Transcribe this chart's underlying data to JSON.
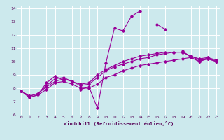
{
  "xlabel": "Windchill (Refroidissement éolien,°C)",
  "ylabel": "",
  "bg_color": "#cce9ed",
  "line_color": "#990099",
  "xlim": [
    -0.5,
    23.5
  ],
  "ylim": [
    6,
    14.2
  ],
  "xticks": [
    0,
    1,
    2,
    3,
    4,
    5,
    6,
    7,
    8,
    9,
    10,
    11,
    12,
    13,
    14,
    15,
    16,
    17,
    18,
    19,
    20,
    21,
    22,
    23
  ],
  "yticks": [
    6,
    7,
    8,
    9,
    10,
    11,
    12,
    13,
    14
  ],
  "series": [
    [
      7.8,
      7.3,
      7.5,
      8.4,
      8.9,
      8.6,
      null,
      7.9,
      8.1,
      6.5,
      9.9,
      12.5,
      12.3,
      13.4,
      13.8,
      null,
      12.8,
      12.4,
      null,
      10.8,
      10.3,
      10.0,
      10.3,
      10.0
    ],
    [
      7.8,
      7.3,
      7.5,
      7.9,
      8.4,
      8.5,
      8.3,
      8.0,
      8.0,
      8.3,
      8.8,
      9.0,
      9.3,
      9.5,
      9.7,
      9.8,
      9.9,
      10.0,
      10.1,
      10.2,
      10.3,
      10.0,
      10.2,
      10.0
    ],
    [
      7.8,
      7.4,
      7.6,
      8.1,
      8.5,
      8.7,
      8.5,
      8.2,
      8.3,
      8.8,
      9.3,
      9.6,
      9.8,
      10.0,
      10.2,
      10.3,
      10.5,
      10.6,
      10.7,
      10.7,
      10.4,
      10.1,
      10.2,
      10.0
    ],
    [
      7.8,
      7.4,
      7.6,
      8.2,
      8.7,
      8.8,
      8.5,
      8.3,
      8.4,
      9.0,
      9.4,
      9.7,
      10.0,
      10.2,
      10.4,
      10.5,
      10.6,
      10.7,
      10.7,
      10.7,
      10.4,
      10.2,
      10.3,
      10.1
    ]
  ]
}
